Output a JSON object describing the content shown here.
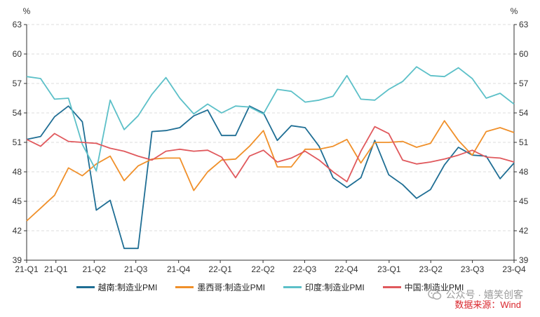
{
  "chart_data": {
    "type": "line",
    "unit_left": "%",
    "unit_right": "%",
    "ylim": [
      39,
      63
    ],
    "yticks": [
      39,
      42,
      45,
      48,
      51,
      54,
      57,
      60,
      63
    ],
    "x_tick_labels": [
      "21-Q1",
      "21-Q1",
      "21-Q2",
      "21-Q3",
      "21-Q4",
      "22-Q1",
      "22-Q2",
      "22-Q3",
      "22-Q4",
      "23-Q1",
      "23-Q2",
      "23-Q3",
      "23-Q4"
    ],
    "grid": true,
    "legend_position": "bottom",
    "colors": {
      "vietnam": "#1f6e94",
      "mexico": "#f0902a",
      "india": "#5cc0c8",
      "china": "#e0595d"
    },
    "series": [
      {
        "name": "越南:制造业PMI",
        "values": [
          51.3,
          51.6,
          53.6,
          54.7,
          53.1,
          44.1,
          45.1,
          40.2,
          40.2,
          52.1,
          52.2,
          52.5,
          53.7,
          54.3,
          51.7,
          51.7,
          54.7,
          54.0,
          51.2,
          52.7,
          52.5,
          50.6,
          47.4,
          46.4,
          47.4,
          51.2,
          47.7,
          46.7,
          45.3,
          46.2,
          48.7,
          50.5,
          49.7,
          49.6,
          47.3,
          48.9
        ]
      },
      {
        "name": "墨西哥:制造业PMI",
        "values": [
          43.0,
          44.3,
          45.6,
          48.4,
          47.6,
          48.8,
          49.6,
          47.1,
          48.6,
          49.3,
          49.4,
          49.4,
          46.1,
          48.0,
          49.2,
          49.3,
          50.6,
          52.2,
          48.5,
          48.5,
          50.3,
          50.3,
          50.6,
          51.3,
          48.9,
          51.0,
          51.0,
          51.1,
          50.5,
          50.9,
          53.2,
          51.2,
          49.7,
          52.1,
          52.5,
          52.0
        ]
      },
      {
        "name": "印度:制造业PMI",
        "values": [
          57.7,
          57.5,
          55.4,
          55.5,
          50.8,
          48.1,
          55.3,
          52.3,
          53.7,
          55.9,
          57.6,
          55.5,
          53.9,
          54.9,
          54.0,
          54.7,
          54.6,
          53.9,
          56.4,
          56.2,
          55.1,
          55.3,
          55.7,
          57.8,
          55.4,
          55.3,
          56.4,
          57.2,
          58.7,
          57.8,
          57.7,
          58.6,
          57.5,
          55.5,
          56.0,
          54.9
        ]
      },
      {
        "name": "中国:制造业PMI",
        "values": [
          51.3,
          50.6,
          51.9,
          51.1,
          51.0,
          50.9,
          50.4,
          50.1,
          49.6,
          49.2,
          50.1,
          50.3,
          50.1,
          50.2,
          49.5,
          47.4,
          49.6,
          50.2,
          49.0,
          49.4,
          50.1,
          49.2,
          48.0,
          47.0,
          50.1,
          52.6,
          51.9,
          49.2,
          48.8,
          49.0,
          49.3,
          49.7,
          50.2,
          49.5,
          49.4,
          49.0
        ]
      }
    ]
  },
  "watermark": {
    "text": "公众号 · 嬉笑创客"
  },
  "source": {
    "text": "数据来源：Wind"
  }
}
